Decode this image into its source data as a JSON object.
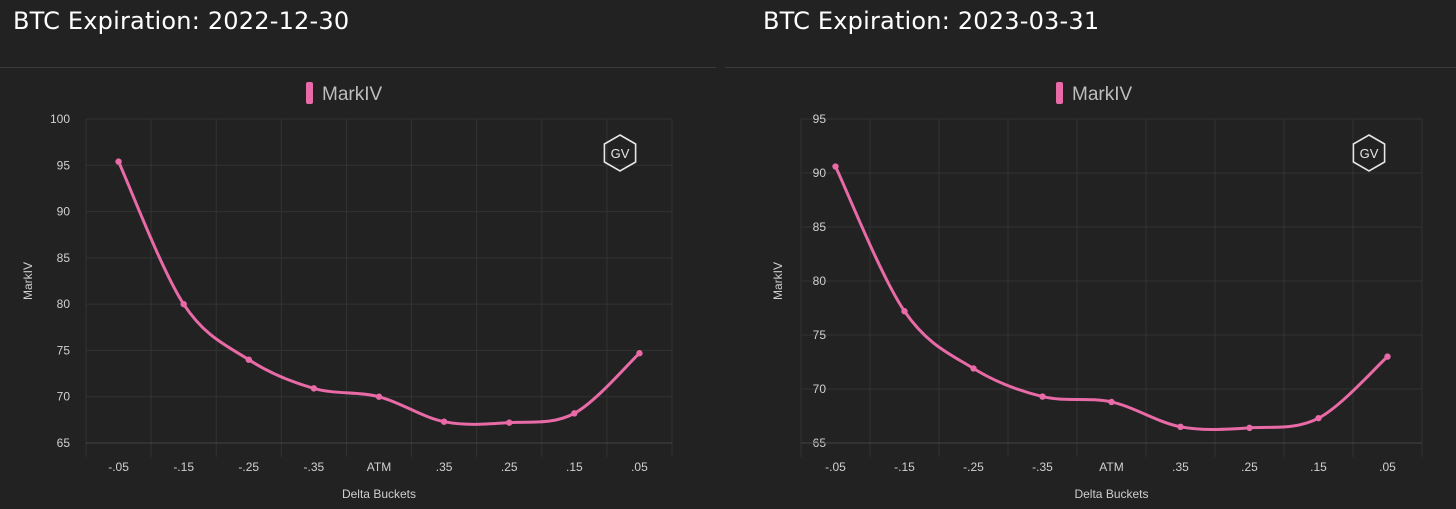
{
  "colors": {
    "background": "#222222",
    "series": "#e86aa6",
    "grid": "#333333",
    "text": "#d0d0d0"
  },
  "logo_text": "GV",
  "chart_data": [
    {
      "type": "line",
      "title": "BTC Expiration: 2022-12-30",
      "xlabel": "Delta Buckets",
      "ylabel": "MarkIV",
      "categories": [
        "-.05",
        "-.15",
        "-.25",
        "-.35",
        "ATM",
        ".35",
        ".25",
        ".15",
        ".05"
      ],
      "ylim": [
        65,
        100
      ],
      "yticks": [
        "100",
        "95",
        "90",
        "85",
        "80",
        "75",
        "70",
        "65"
      ],
      "grid": true,
      "legend_position": "top-center",
      "series": [
        {
          "name": "MarkIV",
          "values": [
            95.4,
            80.0,
            74.0,
            70.9,
            70.0,
            67.3,
            67.2,
            68.2,
            74.7
          ]
        }
      ]
    },
    {
      "type": "line",
      "title": "BTC Expiration: 2023-03-31",
      "xlabel": "Delta Buckets",
      "ylabel": "MarkIV",
      "categories": [
        "-.05",
        "-.15",
        "-.25",
        "-.35",
        "ATM",
        ".35",
        ".25",
        ".15",
        ".05"
      ],
      "ylim": [
        65,
        95
      ],
      "yticks": [
        "95",
        "90",
        "85",
        "80",
        "75",
        "70",
        "65"
      ],
      "grid": true,
      "legend_position": "top-center",
      "series": [
        {
          "name": "MarkIV",
          "values": [
            90.6,
            77.2,
            71.9,
            69.3,
            68.8,
            66.5,
            66.4,
            67.3,
            73.0
          ]
        }
      ]
    }
  ]
}
